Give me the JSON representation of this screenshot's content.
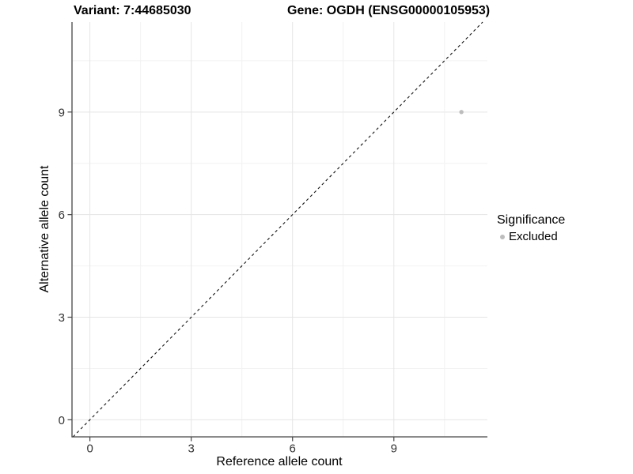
{
  "chart_data": {
    "type": "scatter",
    "titles": {
      "variant": "Variant: 7:44685030",
      "gene": "Gene: OGDH (ENSG00000105953)"
    },
    "xlabel": "Reference allele count",
    "ylabel": "Alternative allele count",
    "x_ticks": [
      0,
      3,
      6,
      9
    ],
    "y_ticks": [
      0,
      3,
      6,
      9
    ],
    "x_minor_gridlines": [
      1.5,
      4.5,
      7.5,
      10.5
    ],
    "y_minor_gridlines": [
      1.5,
      4.5,
      7.5,
      10.5
    ],
    "xlim": [
      -0.53,
      11.77
    ],
    "ylim": [
      -0.5,
      11.63
    ],
    "grid": "major and minor, light gray, no top/right border",
    "identity_line": {
      "equation": "y = x",
      "style": "dashed",
      "color": "#111111"
    },
    "series": [
      {
        "name": "Excluded",
        "color": "#bdbdbd",
        "points": [
          {
            "x": 11,
            "y": 9
          }
        ]
      }
    ],
    "legend": {
      "title": "Significance",
      "position": "right",
      "entries": [
        {
          "label": "Excluded",
          "color": "#bdbdbd"
        }
      ]
    },
    "colors": {
      "axis_line": "#464646",
      "tick_label": "#333333",
      "grid_major": "#e5e5e5",
      "grid_minor": "#f2f2f2"
    }
  }
}
